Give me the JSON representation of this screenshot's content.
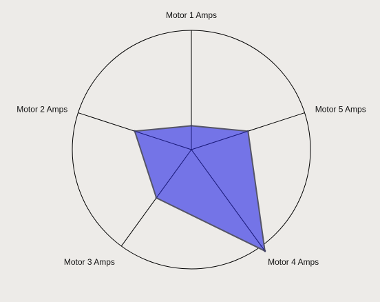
{
  "chart_data": {
    "type": "radar",
    "title": "",
    "axes": [
      "Motor 1 Amps",
      "Motor 5 Amps",
      "Motor 4 Amps",
      "Motor 3 Amps",
      "Motor 2 Amps"
    ],
    "series": [
      {
        "name": "",
        "values": [
          0.2,
          0.5,
          1.05,
          0.5,
          0.5
        ],
        "color": "#6b6be6"
      }
    ],
    "range": [
      0,
      1
    ],
    "gridlines": true
  }
}
